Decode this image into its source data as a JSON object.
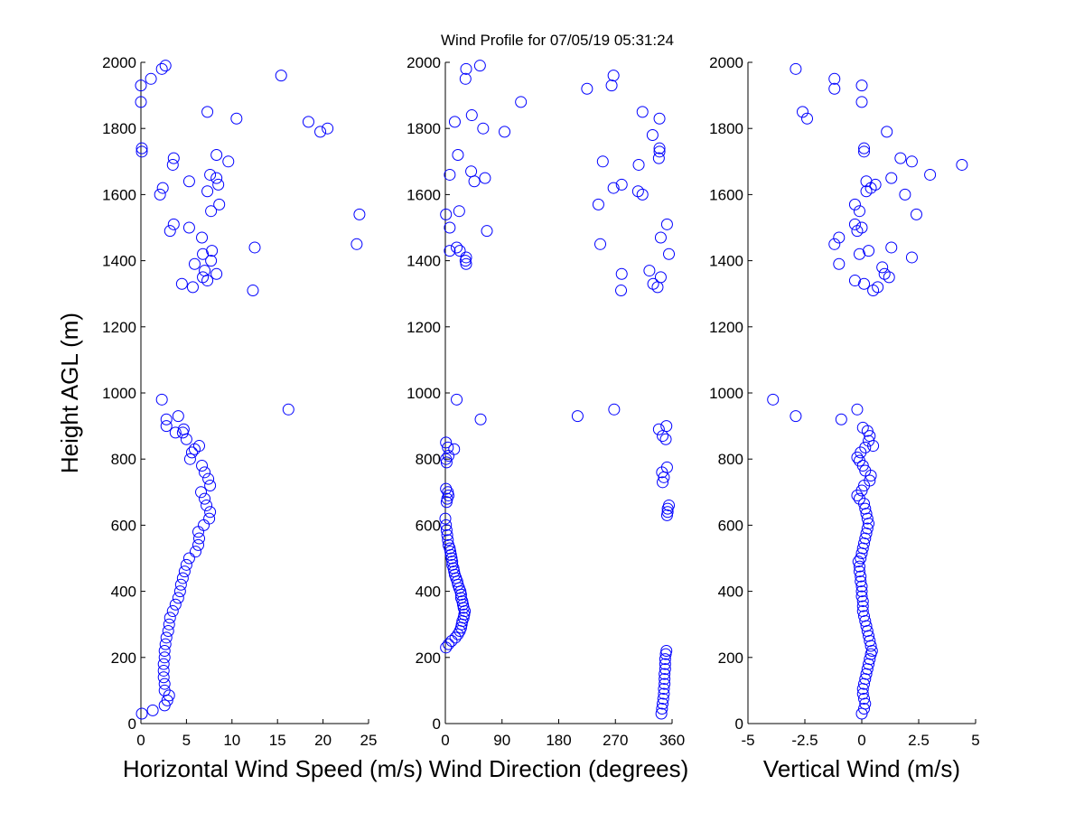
{
  "figure_title": "Wind Profile for  07/05/19 05:31:24",
  "chart_data": [
    {
      "type": "scatter",
      "name": "speed",
      "xlabel": "Horizontal Wind Speed (m/s)",
      "ylabel": "Height AGL (m)",
      "xlim": [
        0,
        25
      ],
      "ylim": [
        0,
        2000
      ],
      "xticks": [
        0,
        5,
        10,
        15,
        20,
        25
      ],
      "xtick_labels": [
        "0",
        "5",
        "10",
        "15",
        "20",
        "25"
      ],
      "yticks": [
        0,
        200,
        400,
        600,
        800,
        1000,
        1200,
        1400,
        1600,
        1800,
        2000
      ],
      "ytick_labels": [
        "0",
        "200",
        "400",
        "600",
        "800",
        "1000",
        "1200",
        "1400",
        "1600",
        "1800",
        "2000"
      ],
      "marker_color": "#0000ff",
      "points": [
        [
          0.1,
          30
        ],
        [
          1.3,
          40
        ],
        [
          2.6,
          55
        ],
        [
          2.9,
          70
        ],
        [
          3.1,
          85
        ],
        [
          2.6,
          100
        ],
        [
          2.6,
          120
        ],
        [
          2.5,
          140
        ],
        [
          2.5,
          160
        ],
        [
          2.5,
          180
        ],
        [
          2.6,
          200
        ],
        [
          2.6,
          220
        ],
        [
          2.7,
          240
        ],
        [
          2.8,
          260
        ],
        [
          3.0,
          280
        ],
        [
          3.1,
          300
        ],
        [
          3.2,
          320
        ],
        [
          3.5,
          340
        ],
        [
          3.8,
          360
        ],
        [
          4.1,
          380
        ],
        [
          4.3,
          400
        ],
        [
          4.4,
          420
        ],
        [
          4.6,
          440
        ],
        [
          4.8,
          460
        ],
        [
          5.0,
          480
        ],
        [
          5.3,
          500
        ],
        [
          6.0,
          520
        ],
        [
          6.3,
          540
        ],
        [
          6.4,
          560
        ],
        [
          6.3,
          580
        ],
        [
          6.9,
          600
        ],
        [
          7.5,
          620
        ],
        [
          7.6,
          640
        ],
        [
          7.2,
          660
        ],
        [
          7.0,
          680
        ],
        [
          6.6,
          700
        ],
        [
          7.6,
          720
        ],
        [
          7.4,
          740
        ],
        [
          7.0,
          760
        ],
        [
          6.7,
          780
        ],
        [
          5.4,
          800
        ],
        [
          5.6,
          820
        ],
        [
          5.9,
          830
        ],
        [
          6.4,
          840
        ],
        [
          5.0,
          860
        ],
        [
          4.6,
          880
        ],
        [
          3.8,
          880
        ],
        [
          4.7,
          890
        ],
        [
          2.8,
          900
        ],
        [
          2.8,
          920
        ],
        [
          4.1,
          930
        ],
        [
          16.2,
          950
        ],
        [
          2.3,
          980
        ],
        [
          12.3,
          1310
        ],
        [
          5.7,
          1320
        ],
        [
          4.5,
          1330
        ],
        [
          7.3,
          1340
        ],
        [
          6.8,
          1350
        ],
        [
          8.3,
          1360
        ],
        [
          7.0,
          1370
        ],
        [
          5.9,
          1390
        ],
        [
          7.7,
          1400
        ],
        [
          6.8,
          1420
        ],
        [
          7.8,
          1430
        ],
        [
          12.5,
          1440
        ],
        [
          23.7,
          1450
        ],
        [
          6.7,
          1470
        ],
        [
          3.2,
          1490
        ],
        [
          5.3,
          1500
        ],
        [
          3.6,
          1510
        ],
        [
          24.0,
          1540
        ],
        [
          7.7,
          1550
        ],
        [
          8.6,
          1570
        ],
        [
          2.1,
          1600
        ],
        [
          7.3,
          1610
        ],
        [
          2.4,
          1620
        ],
        [
          8.5,
          1630
        ],
        [
          5.3,
          1640
        ],
        [
          8.3,
          1650
        ],
        [
          7.6,
          1660
        ],
        [
          3.5,
          1690
        ],
        [
          9.6,
          1700
        ],
        [
          3.6,
          1710
        ],
        [
          8.3,
          1720
        ],
        [
          0.1,
          1730
        ],
        [
          0.1,
          1740
        ],
        [
          20.5,
          1800
        ],
        [
          19.7,
          1790
        ],
        [
          18.4,
          1820
        ],
        [
          10.5,
          1830
        ],
        [
          7.3,
          1850
        ],
        [
          0.0,
          1880
        ],
        [
          0.0,
          1930
        ],
        [
          1.1,
          1950
        ],
        [
          15.4,
          1960
        ],
        [
          2.3,
          1980
        ],
        [
          2.7,
          1990
        ]
      ]
    },
    {
      "type": "scatter",
      "name": "direction",
      "xlabel": "Wind Direction (degrees)",
      "xlim": [
        0,
        360
      ],
      "ylim": [
        0,
        2000
      ],
      "xticks": [
        0,
        90,
        180,
        270,
        360
      ],
      "xtick_labels": [
        "0",
        "90",
        "180",
        "270",
        "360"
      ],
      "yticks": [
        0,
        200,
        400,
        600,
        800,
        1000,
        1200,
        1400,
        1600,
        1800,
        2000
      ],
      "ytick_labels": [
        "0",
        "200",
        "400",
        "600",
        "800",
        "1000",
        "1200",
        "1400",
        "1600",
        "1800",
        "2000"
      ],
      "marker_color": "#0000ff",
      "points": [
        [
          343,
          30
        ],
        [
          344,
          45
        ],
        [
          345,
          60
        ],
        [
          346,
          75
        ],
        [
          347,
          90
        ],
        [
          347,
          105
        ],
        [
          348,
          120
        ],
        [
          348,
          135
        ],
        [
          348,
          150
        ],
        [
          349,
          165
        ],
        [
          349,
          180
        ],
        [
          349,
          195
        ],
        [
          350,
          210
        ],
        [
          351,
          220
        ],
        [
          1,
          230
        ],
        [
          5,
          240
        ],
        [
          10,
          250
        ],
        [
          16,
          260
        ],
        [
          20,
          270
        ],
        [
          23,
          280
        ],
        [
          25,
          290
        ],
        [
          26,
          300
        ],
        [
          27,
          310
        ],
        [
          29,
          320
        ],
        [
          30,
          330
        ],
        [
          31,
          340
        ],
        [
          29,
          350
        ],
        [
          28,
          360
        ],
        [
          27,
          370
        ],
        [
          25,
          380
        ],
        [
          25,
          390
        ],
        [
          24,
          400
        ],
        [
          22,
          410
        ],
        [
          20,
          420
        ],
        [
          19,
          430
        ],
        [
          17,
          440
        ],
        [
          15,
          450
        ],
        [
          14,
          460
        ],
        [
          13,
          470
        ],
        [
          11,
          480
        ],
        [
          11,
          490
        ],
        [
          10,
          500
        ],
        [
          9,
          510
        ],
        [
          8,
          520
        ],
        [
          7,
          530
        ],
        [
          5,
          540
        ],
        [
          4,
          555
        ],
        [
          3,
          570
        ],
        [
          2,
          585
        ],
        [
          1,
          600
        ],
        [
          0,
          620
        ],
        [
          352,
          630
        ],
        [
          353,
          640
        ],
        [
          353,
          650
        ],
        [
          355,
          660
        ],
        [
          2,
          670
        ],
        [
          3,
          680
        ],
        [
          5,
          690
        ],
        [
          4,
          700
        ],
        [
          1,
          710
        ],
        [
          345,
          730
        ],
        [
          347,
          745
        ],
        [
          344,
          760
        ],
        [
          352,
          775
        ],
        [
          2,
          790
        ],
        [
          1,
          800
        ],
        [
          5,
          810
        ],
        [
          14,
          830
        ],
        [
          4,
          835
        ],
        [
          1,
          850
        ],
        [
          350,
          860
        ],
        [
          345,
          870
        ],
        [
          351,
          900
        ],
        [
          339,
          890
        ],
        [
          56,
          920
        ],
        [
          210,
          930
        ],
        [
          268,
          950
        ],
        [
          18,
          980
        ],
        [
          279,
          1310
        ],
        [
          337,
          1320
        ],
        [
          330,
          1330
        ],
        [
          342,
          1350
        ],
        [
          280,
          1360
        ],
        [
          324,
          1370
        ],
        [
          33,
          1390
        ],
        [
          32,
          1400
        ],
        [
          33,
          1410
        ],
        [
          355,
          1420
        ],
        [
          23,
          1430
        ],
        [
          7,
          1430
        ],
        [
          18,
          1440
        ],
        [
          246,
          1450
        ],
        [
          342,
          1470
        ],
        [
          66,
          1490
        ],
        [
          7,
          1500
        ],
        [
          352,
          1510
        ],
        [
          1,
          1540
        ],
        [
          22,
          1550
        ],
        [
          243,
          1570
        ],
        [
          313,
          1600
        ],
        [
          306,
          1610
        ],
        [
          267,
          1620
        ],
        [
          280,
          1630
        ],
        [
          63,
          1650
        ],
        [
          46,
          1640
        ],
        [
          41,
          1670
        ],
        [
          7,
          1660
        ],
        [
          307,
          1690
        ],
        [
          250,
          1700
        ],
        [
          339,
          1710
        ],
        [
          340,
          1730
        ],
        [
          340,
          1740
        ],
        [
          20,
          1720
        ],
        [
          329,
          1780
        ],
        [
          94,
          1790
        ],
        [
          60,
          1800
        ],
        [
          15,
          1820
        ],
        [
          42,
          1840
        ],
        [
          340,
          1830
        ],
        [
          313,
          1850
        ],
        [
          120,
          1880
        ],
        [
          225,
          1920
        ],
        [
          264,
          1930
        ],
        [
          32,
          1950
        ],
        [
          267,
          1960
        ],
        [
          33,
          1980
        ],
        [
          55,
          1990
        ]
      ]
    },
    {
      "type": "scatter",
      "name": "vertical",
      "xlabel": "Vertical Wind (m/s)",
      "xlim": [
        -5,
        5
      ],
      "ylim": [
        0,
        2000
      ],
      "xticks": [
        -5,
        -2.5,
        0,
        2.5,
        5
      ],
      "xtick_labels": [
        "-5",
        "-2.5",
        "0",
        "2.5",
        "5"
      ],
      "yticks": [
        0,
        200,
        400,
        600,
        800,
        1000,
        1200,
        1400,
        1600,
        1800,
        2000
      ],
      "ytick_labels": [
        "0",
        "200",
        "400",
        "600",
        "800",
        "1000",
        "1200",
        "1400",
        "1600",
        "1800",
        "2000"
      ],
      "marker_color": "#0000ff",
      "points": [
        [
          0.0,
          30
        ],
        [
          0.1,
          45
        ],
        [
          0.15,
          60
        ],
        [
          0.1,
          75
        ],
        [
          0.05,
          90
        ],
        [
          0.05,
          105
        ],
        [
          0.1,
          120
        ],
        [
          0.15,
          135
        ],
        [
          0.2,
          150
        ],
        [
          0.25,
          165
        ],
        [
          0.3,
          180
        ],
        [
          0.35,
          195
        ],
        [
          0.4,
          210
        ],
        [
          0.45,
          220
        ],
        [
          0.4,
          235
        ],
        [
          0.35,
          250
        ],
        [
          0.3,
          265
        ],
        [
          0.25,
          280
        ],
        [
          0.2,
          295
        ],
        [
          0.15,
          310
        ],
        [
          0.1,
          325
        ],
        [
          0.05,
          340
        ],
        [
          0.05,
          355
        ],
        [
          0.05,
          370
        ],
        [
          0.0,
          385
        ],
        [
          0.0,
          400
        ],
        [
          0.0,
          415
        ],
        [
          -0.05,
          430
        ],
        [
          -0.05,
          445
        ],
        [
          -0.1,
          460
        ],
        [
          -0.1,
          475
        ],
        [
          -0.15,
          490
        ],
        [
          -0.05,
          500
        ],
        [
          0.0,
          515
        ],
        [
          0.05,
          530
        ],
        [
          0.1,
          545
        ],
        [
          0.15,
          560
        ],
        [
          0.2,
          575
        ],
        [
          0.25,
          590
        ],
        [
          0.3,
          605
        ],
        [
          0.25,
          620
        ],
        [
          0.2,
          635
        ],
        [
          0.15,
          650
        ],
        [
          0.1,
          665
        ],
        [
          -0.1,
          680
        ],
        [
          -0.2,
          690
        ],
        [
          0.0,
          705
        ],
        [
          0.1,
          720
        ],
        [
          0.35,
          735
        ],
        [
          0.4,
          750
        ],
        [
          0.15,
          765
        ],
        [
          0.05,
          780
        ],
        [
          -0.1,
          795
        ],
        [
          -0.2,
          805
        ],
        [
          -0.05,
          820
        ],
        [
          0.15,
          835
        ],
        [
          0.5,
          840
        ],
        [
          0.3,
          855
        ],
        [
          0.35,
          870
        ],
        [
          0.25,
          885
        ],
        [
          0.05,
          895
        ],
        [
          -0.9,
          920
        ],
        [
          -2.9,
          930
        ],
        [
          -0.2,
          950
        ],
        [
          -3.9,
          980
        ],
        [
          0.5,
          1310
        ],
        [
          0.7,
          1320
        ],
        [
          0.1,
          1330
        ],
        [
          -0.3,
          1340
        ],
        [
          1.2,
          1350
        ],
        [
          1.0,
          1360
        ],
        [
          0.9,
          1380
        ],
        [
          -1.0,
          1390
        ],
        [
          2.2,
          1410
        ],
        [
          -0.1,
          1420
        ],
        [
          0.3,
          1430
        ],
        [
          1.3,
          1440
        ],
        [
          -1.2,
          1450
        ],
        [
          -1.0,
          1470
        ],
        [
          -0.2,
          1490
        ],
        [
          -0.3,
          1510
        ],
        [
          0.0,
          1500
        ],
        [
          2.4,
          1540
        ],
        [
          -0.1,
          1550
        ],
        [
          -0.3,
          1570
        ],
        [
          1.9,
          1600
        ],
        [
          0.2,
          1610
        ],
        [
          0.4,
          1620
        ],
        [
          0.6,
          1630
        ],
        [
          0.2,
          1640
        ],
        [
          1.3,
          1650
        ],
        [
          3.0,
          1660
        ],
        [
          4.4,
          1690
        ],
        [
          2.2,
          1700
        ],
        [
          1.7,
          1710
        ],
        [
          0.1,
          1730
        ],
        [
          0.1,
          1740
        ],
        [
          1.1,
          1790
        ],
        [
          -2.4,
          1830
        ],
        [
          -2.6,
          1850
        ],
        [
          0.0,
          1880
        ],
        [
          -1.2,
          1920
        ],
        [
          0.0,
          1930
        ],
        [
          -1.2,
          1950
        ],
        [
          -2.9,
          1980
        ]
      ]
    }
  ]
}
